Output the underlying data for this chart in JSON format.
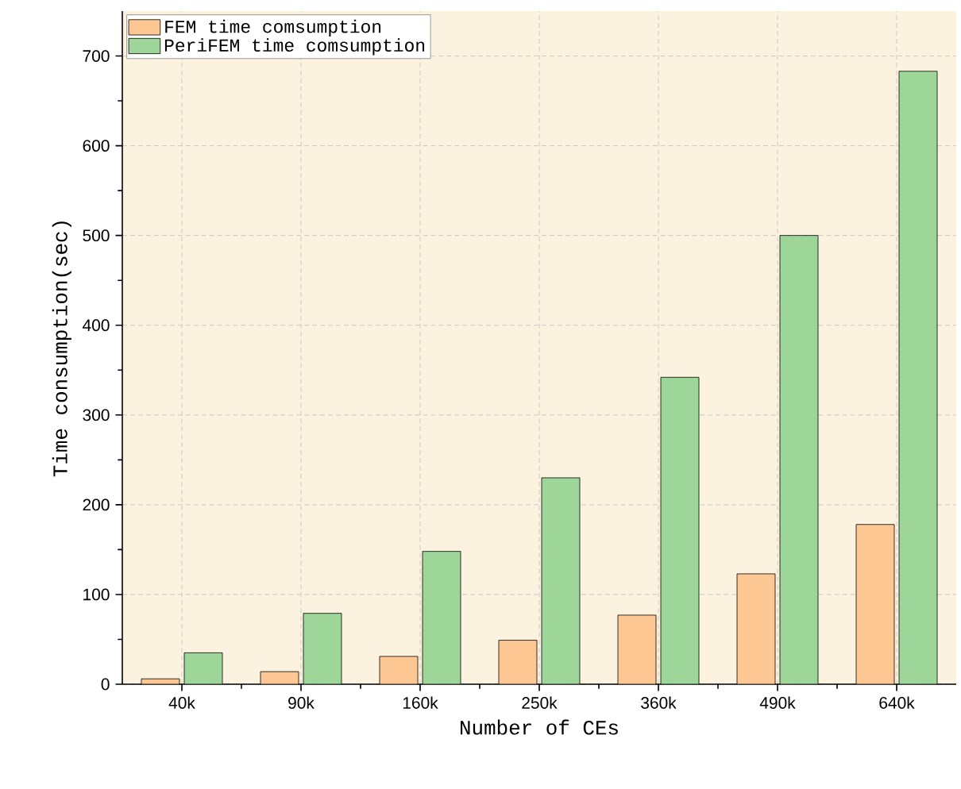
{
  "chart_data": {
    "type": "bar",
    "xlabel": "Number of CEs",
    "ylabel": "Time consumption(sec)",
    "categories": [
      "40k",
      "90k",
      "160k",
      "250k",
      "360k",
      "490k",
      "640k"
    ],
    "series": [
      {
        "name": "FEM time comsumption",
        "color": "#fdc794",
        "values": [
          6,
          14,
          31,
          49,
          77,
          123,
          178
        ]
      },
      {
        "name": "PeriFEM time comsumption",
        "color": "#9ed69a",
        "values": [
          35,
          79,
          148,
          230,
          342,
          500,
          683
        ]
      }
    ],
    "ylim": [
      0,
      750
    ],
    "yticks": [
      0,
      100,
      200,
      300,
      400,
      500,
      600,
      700
    ],
    "grid": true,
    "legend": "top left"
  }
}
